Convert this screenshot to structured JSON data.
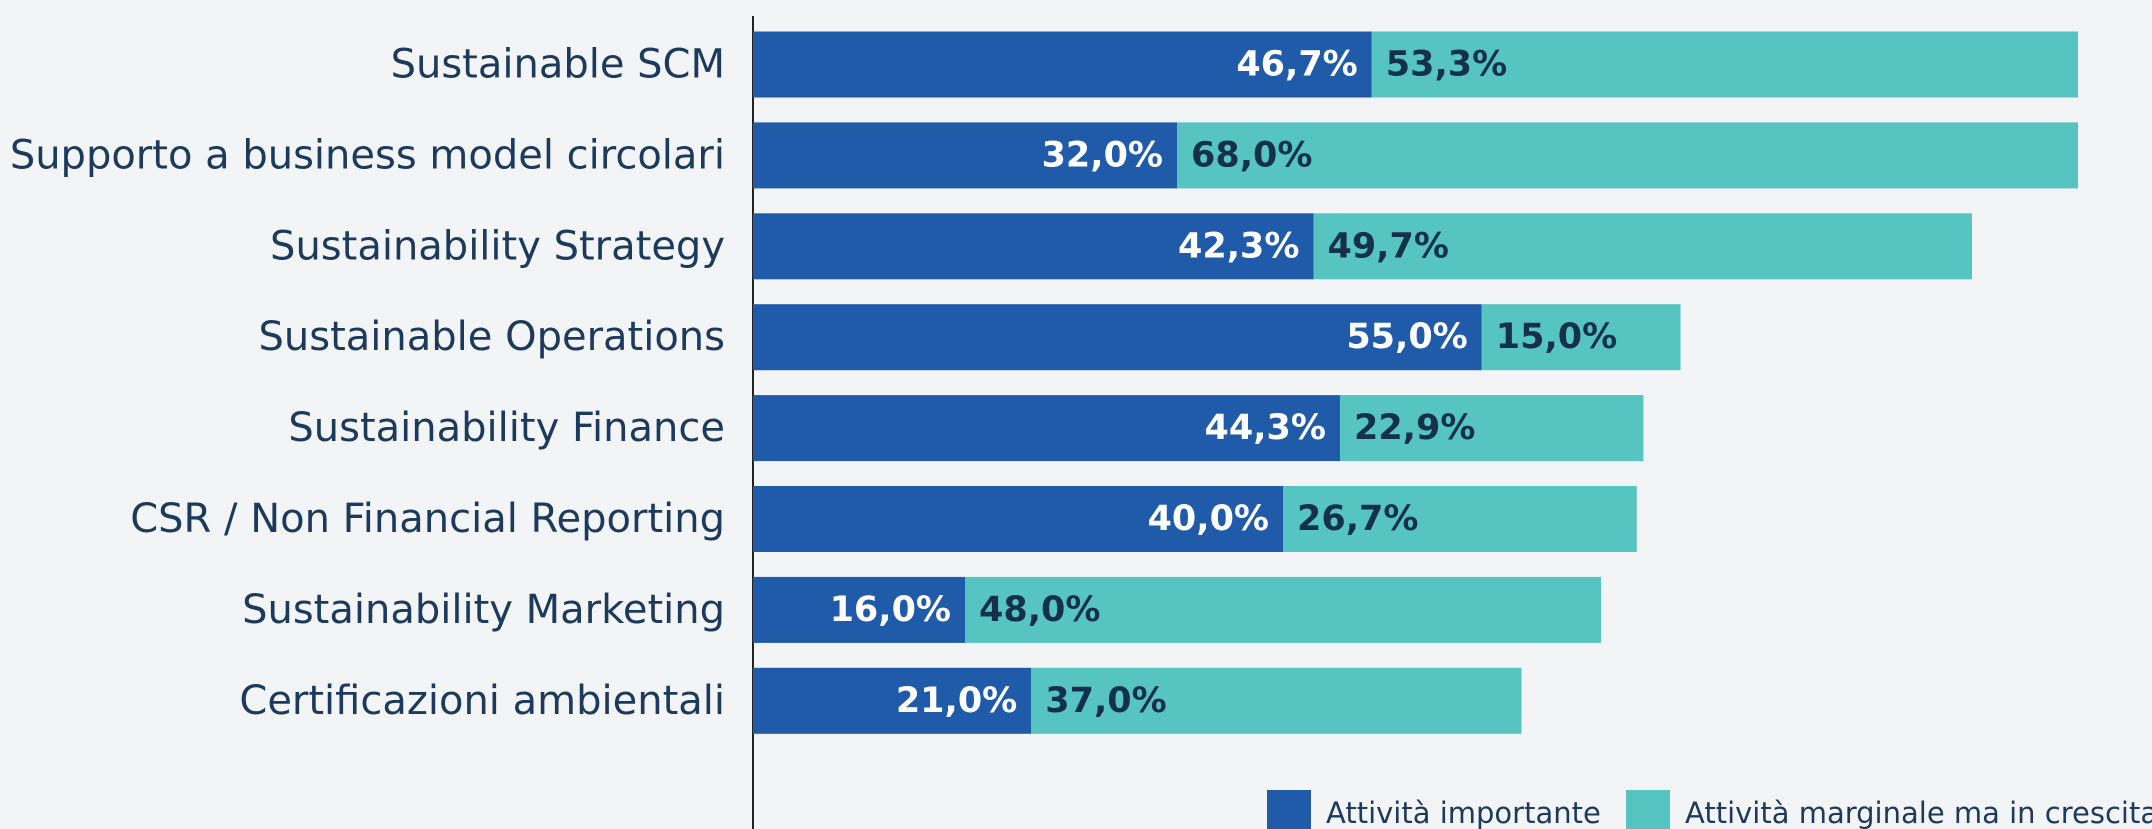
{
  "chart_data": {
    "type": "stacked_barh",
    "categories": [
      "Sustainable SCM",
      "Supporto a business model circolari",
      "Sustainability Strategy",
      "Sustainable Operations",
      "Sustainability Finance",
      "CSR / Non Financial Reporting",
      "Sustainability Marketing",
      "Certificazioni ambientali"
    ],
    "series": [
      {
        "name": "Attività importante",
        "color": "#1f5ba8",
        "values": [
          46.7,
          32.0,
          42.3,
          55.0,
          44.3,
          40.0,
          16.0,
          21.0
        ],
        "value_labels": [
          "46,7%",
          "32,0%",
          "42,3%",
          "55,0%",
          "44,3%",
          "40,0%",
          "16,0%",
          "21,0%"
        ]
      },
      {
        "name": "Attività marginale ma in crescita",
        "color": "#56c4c0",
        "values": [
          53.3,
          68.0,
          49.7,
          15.0,
          22.9,
          26.7,
          48.0,
          37.0
        ],
        "value_labels": [
          "53,3%",
          "68,0%",
          "49,7%",
          "15,0%",
          "22,9%",
          "26,7%",
          "48,0%",
          "37,0%"
        ]
      }
    ],
    "xlim": [
      0,
      100
    ],
    "legend": "bottom-right"
  }
}
